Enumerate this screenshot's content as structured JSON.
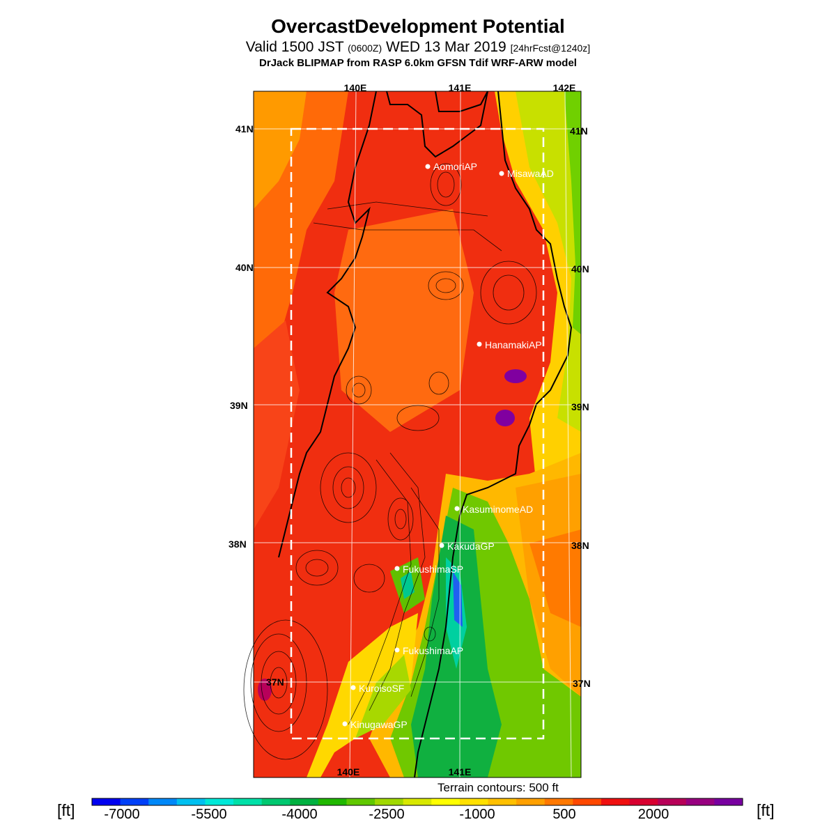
{
  "title": "OvercastDevelopment Potential",
  "subtitle": {
    "valid": "Valid 1500 JST",
    "utc": "(0600Z)",
    "date": "WED 13 Mar 2019",
    "forecast": "[24hrFcst@1240z]"
  },
  "model_line": "DrJack BLIPMAP from RASP 6.0km GFSN Tdif WRF-ARW model",
  "lon_labels": [
    "140E",
    "141E",
    "142E"
  ],
  "lat_labels": [
    "41N",
    "40N",
    "39N",
    "38N",
    "37N"
  ],
  "stations": [
    "AomoriAP",
    "MisawaAD",
    "HanamakiAP",
    "KasuminomeAD",
    "KakudaGP",
    "FukushimaSP",
    "FukushimaAP",
    "KuroisoSF",
    "KinugawaGP"
  ],
  "terrain_note": "Terrain contours: 500 ft",
  "colorbar": {
    "unit": "[ft]",
    "tick_labels": [
      "-7000",
      "-5500",
      "-4000",
      "-2500",
      "-1000",
      "500",
      "2000"
    ],
    "colors": [
      "#0000f0",
      "#0040f8",
      "#0088f8",
      "#00c0f0",
      "#00e8d8",
      "#00e0a8",
      "#00c870",
      "#00b040",
      "#20b800",
      "#60c800",
      "#a0d800",
      "#d8e800",
      "#ffff00",
      "#ffe000",
      "#ffc000",
      "#ffa000",
      "#ff7800",
      "#ff4800",
      "#f01010",
      "#d80030",
      "#b80058",
      "#980080",
      "#7800a0"
    ]
  },
  "colors": {
    "land_red": "#ee2a10",
    "orange": "#ff7a00",
    "green": "#22b400",
    "yellow": "#ffe400"
  }
}
